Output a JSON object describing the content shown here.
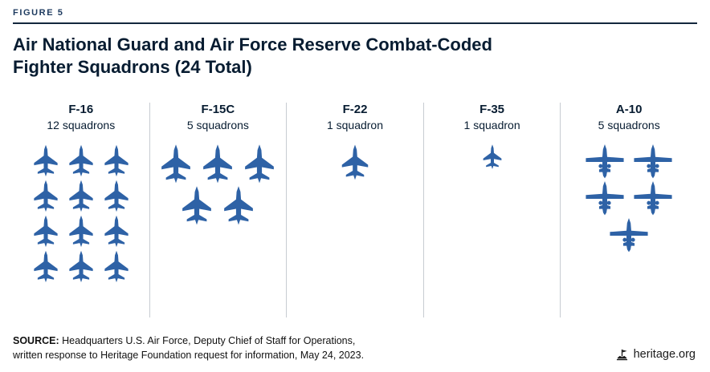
{
  "figure_label": "FIGURE 5",
  "title": {
    "line1": "Air National Guard and Air Force Reserve Combat-Coded",
    "line2": "Fighter Squadrons (24 Total)"
  },
  "chart_data": {
    "type": "pictogram",
    "title": "Air National Guard and Air Force Reserve Combat-Coded Fighter Squadrons (24 Total)",
    "unit": "squadrons",
    "total": 24,
    "categories": [
      "F-16",
      "F-15C",
      "F-22",
      "F-35",
      "A-10"
    ],
    "values": [
      12,
      5,
      1,
      1,
      5
    ],
    "series": [
      {
        "name": "F-16",
        "count": 12,
        "label": "12 squadrons",
        "icon": "jet",
        "css": "f16",
        "rows": [
          3,
          3,
          3,
          3
        ]
      },
      {
        "name": "F-15C",
        "count": 5,
        "label": "5 squadrons",
        "icon": "jet",
        "css": "f15c",
        "rows": [
          3,
          2
        ]
      },
      {
        "name": "F-22",
        "count": 1,
        "label": "1 squadron",
        "icon": "jet",
        "css": "f22",
        "rows": [
          1
        ]
      },
      {
        "name": "F-35",
        "count": 1,
        "label": "1 squadron",
        "icon": "jet",
        "css": "f35",
        "rows": [
          1
        ]
      },
      {
        "name": "A-10",
        "count": 5,
        "label": "5 squadrons",
        "icon": "a10",
        "css": "a10",
        "rows": [
          2,
          2,
          1
        ]
      }
    ],
    "legend": "none",
    "grid": "column-dividers"
  },
  "source": {
    "label": "SOURCE:",
    "line1": " Headquarters U.S. Air Force, Deputy Chief of Staff for Operations,",
    "line2": "written response to Heritage Foundation request for information, May 24, 2023."
  },
  "footer": {
    "site": "heritage.org"
  },
  "colors": {
    "accent": "#2e62a6",
    "navy": "#13273d",
    "divider": "#c7ccd2",
    "text": "#071c31"
  },
  "icons": {
    "aircraft_icon": "fighter-jet-silhouette",
    "a10_icon": "a10-silhouette",
    "brand_icon": "heritage-flag-logo"
  }
}
